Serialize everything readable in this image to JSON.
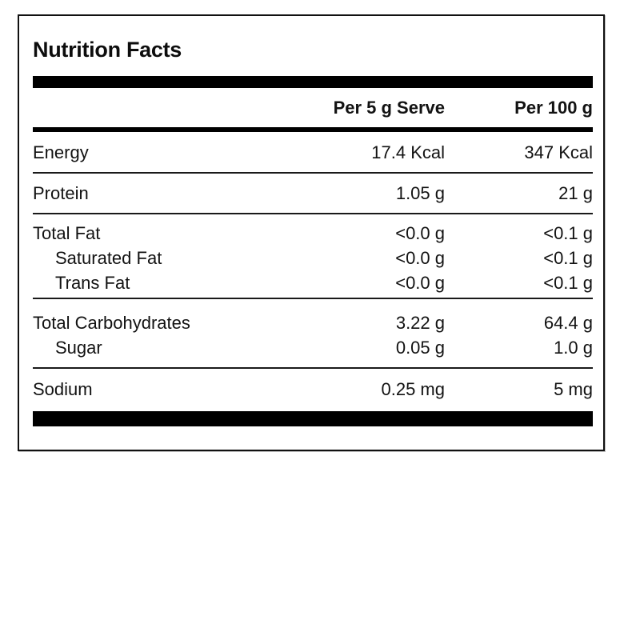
{
  "label": {
    "title": "Nutrition Facts",
    "columns": {
      "serve": "Per 5 g Serve",
      "per100": "Per 100 g"
    },
    "colors": {
      "bar": "#000000",
      "text": "#121212",
      "background": "#ffffff"
    },
    "sections": [
      {
        "rows": [
          {
            "name": "Energy",
            "serve": "17.4 Kcal",
            "per100": "347 Kcal"
          }
        ]
      },
      {
        "rows": [
          {
            "name": "Protein",
            "serve": "1.05 g",
            "per100": "21 g"
          }
        ]
      },
      {
        "rows": [
          {
            "name": "Total Fat",
            "serve": "<0.0 g",
            "per100": "<0.1 g"
          },
          {
            "name": "Saturated Fat",
            "serve": "<0.0 g",
            "per100": "<0.1 g"
          },
          {
            "name": "Trans Fat",
            "serve": "<0.0 g",
            "per100": "<0.1 g"
          }
        ]
      },
      {
        "rows": [
          {
            "name": "Total Carbohydrates",
            "serve": "3.22 g",
            "per100": "64.4 g"
          },
          {
            "name": "Sugar",
            "serve": "0.05 g",
            "per100": "1.0 g"
          }
        ]
      },
      {
        "rows": [
          {
            "name": "Sodium",
            "serve": "0.25 mg",
            "per100": "5 mg"
          }
        ]
      }
    ]
  }
}
